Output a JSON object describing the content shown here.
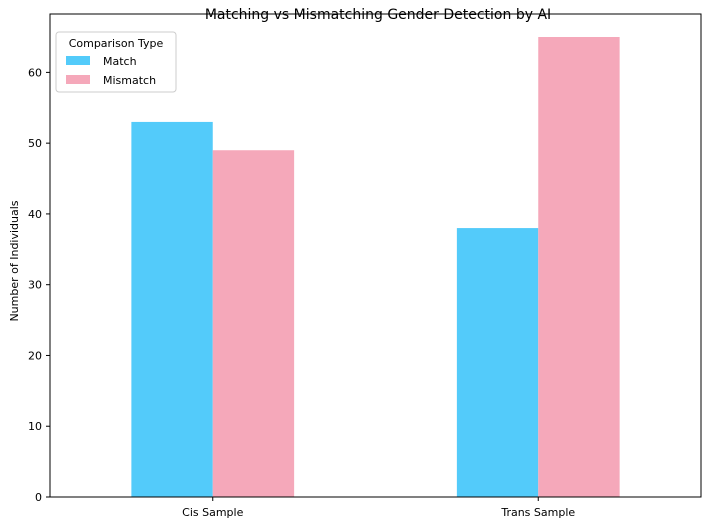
{
  "chart_data": {
    "type": "bar",
    "title": "Matching vs Mismatching Gender Detection by AI",
    "xlabel": "",
    "ylabel": "Number of Individuals",
    "categories": [
      "Cis Sample",
      "Trans Sample"
    ],
    "series": [
      {
        "name": "Match",
        "values": [
          53,
          38
        ],
        "color": "#53cbfa"
      },
      {
        "name": "Mismatch",
        "values": [
          49,
          65
        ],
        "color": "#f5a8ba"
      }
    ],
    "ylim": [
      0,
      68.25
    ],
    "yticks": [
      0,
      10,
      20,
      30,
      40,
      50,
      60
    ],
    "grid": false,
    "legend": {
      "title": "Comparison Type",
      "position": "top-left"
    }
  }
}
